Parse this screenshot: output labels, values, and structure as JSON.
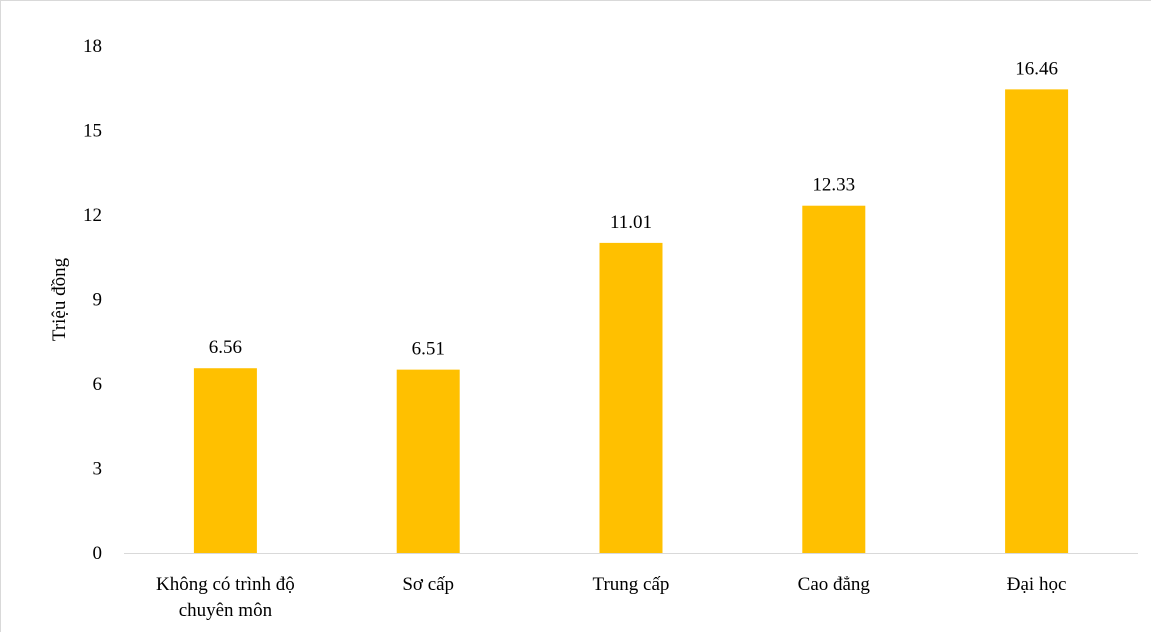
{
  "chart_data": {
    "type": "bar",
    "categories": [
      [
        "Không có trình độ",
        "chuyên môn"
      ],
      [
        "Sơ cấp"
      ],
      [
        "Trung cấp"
      ],
      [
        "Cao đẳng"
      ],
      [
        "Đại học"
      ]
    ],
    "values": [
      6.56,
      6.51,
      11.01,
      12.33,
      16.46
    ],
    "data_labels": [
      "6.56",
      "6.51",
      "11.01",
      "12.33",
      "16.46"
    ],
    "title": "",
    "xlabel": "",
    "ylabel": "Triệu đồng",
    "ylim": [
      0,
      18
    ],
    "yticks": [
      0,
      3,
      6,
      9,
      12,
      15,
      18
    ],
    "ytick_labels": [
      "0",
      "3",
      "6",
      "9",
      "12",
      "15",
      "18"
    ],
    "grid": false,
    "legend": "none",
    "colors": {
      "bar": "#FFC000",
      "axis": "#d9d9d9",
      "text": "#000000"
    }
  }
}
